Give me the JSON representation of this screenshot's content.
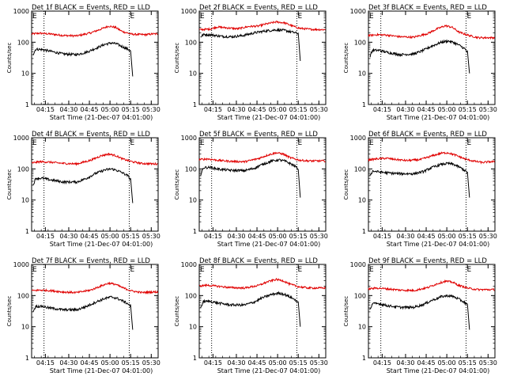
{
  "chart_data": {
    "panels": [
      {
        "title": "Det 1f BLACK = Events, RED = LLD",
        "red": [
          [
            0,
            180
          ],
          [
            8,
            195
          ],
          [
            15,
            185
          ],
          [
            25,
            165
          ],
          [
            35,
            160
          ],
          [
            45,
            200
          ],
          [
            52,
            260
          ],
          [
            58,
            330
          ],
          [
            63,
            300
          ],
          [
            68,
            220
          ],
          [
            75,
            180
          ],
          [
            85,
            175
          ],
          [
            90,
            185
          ]
        ],
        "black": [
          [
            3,
            40
          ],
          [
            5,
            60
          ],
          [
            10,
            58
          ],
          [
            15,
            52
          ],
          [
            25,
            42
          ],
          [
            35,
            40
          ],
          [
            42,
            48
          ],
          [
            48,
            62
          ],
          [
            55,
            85
          ],
          [
            60,
            95
          ],
          [
            64,
            88
          ],
          [
            68,
            72
          ],
          [
            72,
            60
          ],
          [
            74,
            52
          ],
          [
            75.5,
            8
          ]
        ],
        "black_start": 3,
        "black_end": 75.5
      },
      {
        "title": "Det 2f BLACK = Events, RED = LLD",
        "red": [
          [
            0,
            250
          ],
          [
            10,
            265
          ],
          [
            15,
            310
          ],
          [
            22,
            290
          ],
          [
            30,
            270
          ],
          [
            38,
            320
          ],
          [
            45,
            330
          ],
          [
            50,
            380
          ],
          [
            58,
            450
          ],
          [
            64,
            420
          ],
          [
            70,
            330
          ],
          [
            75,
            280
          ],
          [
            83,
            260
          ],
          [
            90,
            255
          ]
        ],
        "black": [
          [
            3,
            150
          ],
          [
            5,
            175
          ],
          [
            10,
            175
          ],
          [
            18,
            155
          ],
          [
            26,
            150
          ],
          [
            34,
            165
          ],
          [
            42,
            200
          ],
          [
            50,
            230
          ],
          [
            58,
            250
          ],
          [
            64,
            240
          ],
          [
            70,
            210
          ],
          [
            74,
            190
          ],
          [
            75.5,
            25
          ]
        ],
        "black_start": 3,
        "black_end": 75.5
      },
      {
        "title": "Det 3f BLACK = Events, RED = LLD",
        "red": [
          [
            0,
            160
          ],
          [
            8,
            175
          ],
          [
            15,
            170
          ],
          [
            25,
            150
          ],
          [
            35,
            145
          ],
          [
            45,
            190
          ],
          [
            52,
            270
          ],
          [
            58,
            340
          ],
          [
            63,
            300
          ],
          [
            68,
            210
          ],
          [
            75,
            165
          ],
          [
            82,
            140
          ],
          [
            90,
            140
          ]
        ],
        "black": [
          [
            3,
            35
          ],
          [
            5,
            55
          ],
          [
            10,
            55
          ],
          [
            15,
            48
          ],
          [
            25,
            40
          ],
          [
            35,
            42
          ],
          [
            42,
            55
          ],
          [
            48,
            75
          ],
          [
            55,
            100
          ],
          [
            60,
            110
          ],
          [
            64,
            98
          ],
          [
            68,
            80
          ],
          [
            72,
            62
          ],
          [
            74,
            48
          ],
          [
            75.5,
            10
          ]
        ],
        "black_start": 3,
        "black_end": 75.5
      },
      {
        "title": "Det 4f BLACK = Events, RED = LLD",
        "red": [
          [
            0,
            150
          ],
          [
            8,
            170
          ],
          [
            15,
            165
          ],
          [
            25,
            150
          ],
          [
            35,
            145
          ],
          [
            45,
            190
          ],
          [
            52,
            260
          ],
          [
            58,
            300
          ],
          [
            63,
            270
          ],
          [
            68,
            210
          ],
          [
            75,
            170
          ],
          [
            82,
            150
          ],
          [
            90,
            145
          ]
        ],
        "black": [
          [
            3,
            30
          ],
          [
            5,
            50
          ],
          [
            10,
            50
          ],
          [
            15,
            45
          ],
          [
            25,
            38
          ],
          [
            35,
            38
          ],
          [
            42,
            50
          ],
          [
            48,
            70
          ],
          [
            55,
            92
          ],
          [
            60,
            100
          ],
          [
            64,
            90
          ],
          [
            68,
            75
          ],
          [
            72,
            60
          ],
          [
            74,
            45
          ],
          [
            75.5,
            8
          ]
        ],
        "black_start": 3,
        "black_end": 75.5
      },
      {
        "title": "Det 5f BLACK = Events, RED = LLD",
        "red": [
          [
            0,
            195
          ],
          [
            8,
            210
          ],
          [
            15,
            190
          ],
          [
            25,
            175
          ],
          [
            35,
            170
          ],
          [
            45,
            215
          ],
          [
            52,
            280
          ],
          [
            58,
            330
          ],
          [
            63,
            300
          ],
          [
            68,
            230
          ],
          [
            75,
            190
          ],
          [
            82,
            180
          ],
          [
            90,
            180
          ]
        ],
        "black": [
          [
            3,
            60
          ],
          [
            5,
            110
          ],
          [
            10,
            112
          ],
          [
            15,
            100
          ],
          [
            25,
            90
          ],
          [
            35,
            88
          ],
          [
            42,
            105
          ],
          [
            48,
            140
          ],
          [
            55,
            180
          ],
          [
            60,
            195
          ],
          [
            64,
            180
          ],
          [
            68,
            150
          ],
          [
            72,
            120
          ],
          [
            74,
            100
          ],
          [
            75.5,
            12
          ]
        ],
        "black_start": 3,
        "black_end": 75.5
      },
      {
        "title": "Det 6f BLACK = Events, RED = LLD",
        "red": [
          [
            0,
            190
          ],
          [
            8,
            210
          ],
          [
            15,
            220
          ],
          [
            22,
            200
          ],
          [
            30,
            185
          ],
          [
            40,
            200
          ],
          [
            48,
            260
          ],
          [
            55,
            320
          ],
          [
            60,
            330
          ],
          [
            66,
            270
          ],
          [
            72,
            210
          ],
          [
            78,
            180
          ],
          [
            85,
            160
          ],
          [
            90,
            170
          ]
        ],
        "black": [
          [
            3,
            60
          ],
          [
            5,
            85
          ],
          [
            10,
            80
          ],
          [
            15,
            75
          ],
          [
            25,
            70
          ],
          [
            35,
            70
          ],
          [
            42,
            82
          ],
          [
            48,
            110
          ],
          [
            55,
            140
          ],
          [
            60,
            150
          ],
          [
            64,
            140
          ],
          [
            68,
            115
          ],
          [
            72,
            90
          ],
          [
            74,
            75
          ],
          [
            75.5,
            12
          ]
        ],
        "black_start": 3,
        "black_end": 75.5
      },
      {
        "title": "Det 7f BLACK = Events, RED = LLD",
        "red": [
          [
            0,
            140
          ],
          [
            8,
            150
          ],
          [
            15,
            145
          ],
          [
            25,
            130
          ],
          [
            35,
            125
          ],
          [
            45,
            150
          ],
          [
            52,
            200
          ],
          [
            58,
            250
          ],
          [
            63,
            230
          ],
          [
            68,
            180
          ],
          [
            75,
            140
          ],
          [
            82,
            125
          ],
          [
            90,
            130
          ]
        ],
        "black": [
          [
            3,
            30
          ],
          [
            5,
            45
          ],
          [
            10,
            45
          ],
          [
            15,
            40
          ],
          [
            25,
            35
          ],
          [
            35,
            35
          ],
          [
            42,
            45
          ],
          [
            48,
            60
          ],
          [
            55,
            80
          ],
          [
            60,
            90
          ],
          [
            64,
            82
          ],
          [
            68,
            68
          ],
          [
            72,
            55
          ],
          [
            74,
            45
          ],
          [
            75.5,
            8
          ]
        ],
        "black_start": 3,
        "black_end": 75.5
      },
      {
        "title": "Det 8f BLACK = Events, RED = LLD",
        "red": [
          [
            0,
            200
          ],
          [
            8,
            215
          ],
          [
            15,
            200
          ],
          [
            25,
            180
          ],
          [
            35,
            175
          ],
          [
            45,
            210
          ],
          [
            52,
            280
          ],
          [
            58,
            330
          ],
          [
            63,
            300
          ],
          [
            68,
            230
          ],
          [
            75,
            190
          ],
          [
            82,
            175
          ],
          [
            90,
            175
          ]
        ],
        "black": [
          [
            3,
            40
          ],
          [
            5,
            65
          ],
          [
            10,
            65
          ],
          [
            15,
            58
          ],
          [
            25,
            50
          ],
          [
            35,
            50
          ],
          [
            42,
            62
          ],
          [
            48,
            85
          ],
          [
            55,
            110
          ],
          [
            60,
            120
          ],
          [
            64,
            110
          ],
          [
            68,
            90
          ],
          [
            72,
            72
          ],
          [
            74,
            58
          ],
          [
            75.5,
            10
          ]
        ],
        "black_start": 3,
        "black_end": 75.5
      },
      {
        "title": "Det 9f BLACK = Events, RED = LLD",
        "red": [
          [
            0,
            160
          ],
          [
            8,
            175
          ],
          [
            15,
            165
          ],
          [
            25,
            150
          ],
          [
            35,
            145
          ],
          [
            45,
            180
          ],
          [
            52,
            240
          ],
          [
            58,
            290
          ],
          [
            63,
            270
          ],
          [
            68,
            210
          ],
          [
            75,
            170
          ],
          [
            82,
            155
          ],
          [
            90,
            155
          ]
        ],
        "black": [
          [
            3,
            35
          ],
          [
            5,
            55
          ],
          [
            10,
            55
          ],
          [
            15,
            48
          ],
          [
            25,
            42
          ],
          [
            35,
            42
          ],
          [
            42,
            52
          ],
          [
            48,
            70
          ],
          [
            55,
            92
          ],
          [
            60,
            100
          ],
          [
            64,
            92
          ],
          [
            68,
            76
          ],
          [
            72,
            60
          ],
          [
            74,
            50
          ],
          [
            75.5,
            8
          ]
        ],
        "black_start": 3,
        "black_end": 75.5
      }
    ],
    "x_range_minutes": [
      2,
      94
    ],
    "x_origin_label": "04:01:00",
    "x_ticks_minutes": [
      12,
      29,
      44,
      59,
      74,
      89
    ],
    "x_tick_labels": [
      "04:15",
      "04:30",
      "04:45",
      "05:00",
      "05:15",
      "05:30"
    ],
    "xlabel": "Start Time (21-Dec-07 04:01:00)",
    "ylabel": "Counts/sec",
    "y_log": true,
    "ylim": [
      1,
      1000
    ],
    "y_ticks": [
      1,
      10,
      100,
      1000
    ],
    "y_tick_labels": [
      "1",
      "10",
      "100",
      "1000"
    ],
    "dotted_vlines_minutes": [
      11,
      73
    ],
    "corner_markers": {
      "left": "E",
      "right": "E"
    }
  }
}
